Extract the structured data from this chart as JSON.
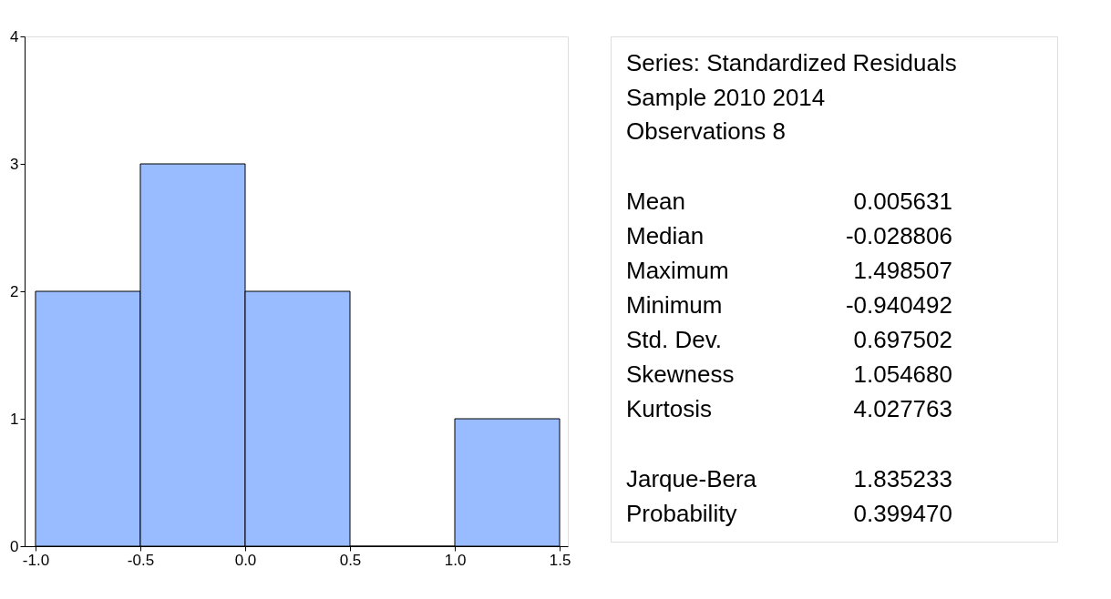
{
  "chart_data": [
    {
      "type": "histogram",
      "bins": [
        -1.0,
        -0.5,
        0.0,
        0.5,
        1.0,
        1.5
      ],
      "values": [
        2,
        3,
        2,
        0,
        1
      ],
      "color": "#99bbff",
      "xlim": [
        -1.052,
        1.539
      ],
      "xticks": [
        {
          "value": -1.0,
          "label": "-1.0"
        },
        {
          "value": -0.5,
          "label": "-0.5"
        },
        {
          "value": 0.0,
          "label": "0.0"
        },
        {
          "value": 0.5,
          "label": "0.5"
        },
        {
          "value": 1.0,
          "label": "1.0"
        },
        {
          "value": 1.5,
          "label": "1.5"
        }
      ],
      "ylim": [
        0,
        4
      ],
      "yticks": [
        0,
        1,
        2,
        3,
        4
      ],
      "grid": false
    },
    {
      "type": "other",
      "annotations": [
        "Series: Standardized Residuals",
        "Sample 2010 2014",
        "Observations 8",
        "Mean",
        "0.005631",
        "Median",
        "-0.028806",
        "Maximum",
        "1.498507",
        "Minimum",
        "-0.940492",
        "Std. Dev.",
        "0.697502",
        "Skewness",
        "1.054680",
        "Kurtosis",
        "4.027763",
        "Jarque-Bera",
        "1.835233",
        "Probability",
        "0.399470"
      ]
    }
  ]
}
